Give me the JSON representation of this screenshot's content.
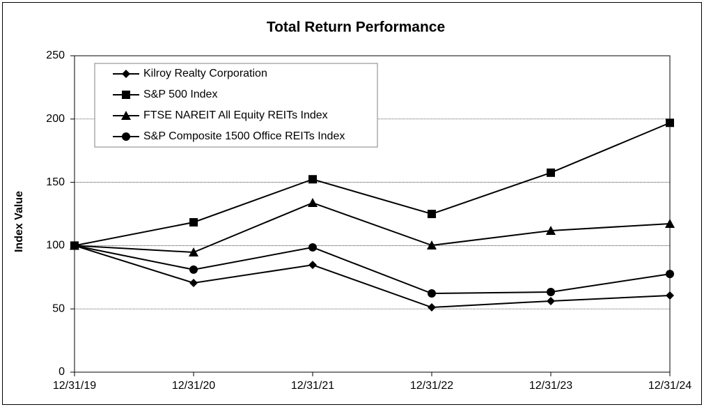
{
  "chart_data": {
    "type": "line",
    "title": "Total Return Performance",
    "y_label": "Index Value",
    "categories": [
      "12/31/19",
      "12/31/20",
      "12/31/21",
      "12/31/22",
      "12/31/23",
      "12/31/24"
    ],
    "series": [
      {
        "name": "Kilroy Realty Corporation",
        "color": "#000000",
        "marker": "diamond",
        "values": [
          100,
          70.5,
          84.7,
          51.2,
          56.2,
          60.6
        ]
      },
      {
        "name": "S&P 500 Index",
        "color": "#000000",
        "marker": "square",
        "values": [
          100,
          118.4,
          152.4,
          125,
          157.6,
          197
        ]
      },
      {
        "name": "FTSE NAREIT All Equity REITs Index",
        "color": "#000000",
        "marker": "triangle",
        "values": [
          100,
          94.7,
          133.8,
          100.2,
          111.8,
          117.3
        ]
      },
      {
        "name": "S&P Composite 1500 Office REITs Index",
        "color": "#000000",
        "marker": "circle",
        "values": [
          100,
          81,
          98.6,
          62.2,
          63.3,
          77.6
        ]
      }
    ],
    "ylim": [
      0,
      250
    ],
    "yticks": [
      0,
      50,
      100,
      150,
      200,
      250
    ],
    "grid": true,
    "legend": "upper-left"
  }
}
